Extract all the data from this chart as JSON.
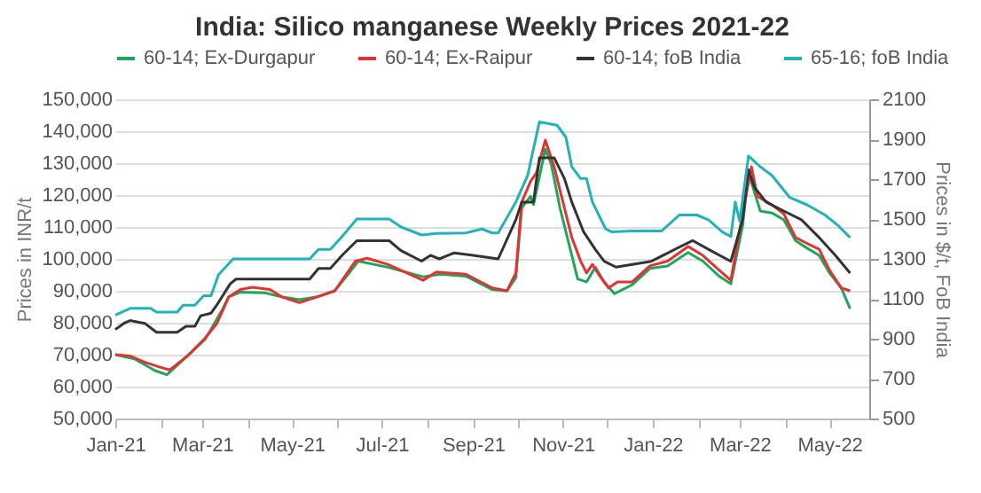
{
  "chart_data": {
    "type": "line",
    "title": "India: Silico manganese Weekly Prices 2021-22",
    "ylabel": "Prices in INR/t",
    "y2label": "Prices in $/t, FoB India",
    "xlim": [
      "2021-01-01",
      "2022-05-28"
    ],
    "xticks": [
      {
        "value": "2021-01",
        "label": "Jan-21"
      },
      {
        "value": "2021-02",
        "label": null
      },
      {
        "value": "2021-03",
        "label": "Mar-21"
      },
      {
        "value": "2021-04",
        "label": null
      },
      {
        "value": "2021-05",
        "label": "May-21"
      },
      {
        "value": "2021-06",
        "label": null
      },
      {
        "value": "2021-07",
        "label": "Jul-21"
      },
      {
        "value": "2021-08",
        "label": null
      },
      {
        "value": "2021-09",
        "label": "Sep-21"
      },
      {
        "value": "2021-10",
        "label": null
      },
      {
        "value": "2021-11",
        "label": "Nov-21"
      },
      {
        "value": "2021-12",
        "label": null
      },
      {
        "value": "2022-01",
        "label": "Jan-22"
      },
      {
        "value": "2022-02",
        "label": null
      },
      {
        "value": "2022-03",
        "label": "Mar-22"
      },
      {
        "value": "2022-04",
        "label": null
      },
      {
        "value": "2022-05",
        "label": "May-22"
      }
    ],
    "ylim": [
      50000,
      150000
    ],
    "yticks": [
      {
        "value": 50000,
        "label": "50,000"
      },
      {
        "value": 60000,
        "label": "60,000"
      },
      {
        "value": 70000,
        "label": "70,000"
      },
      {
        "value": 80000,
        "label": "80,000"
      },
      {
        "value": 90000,
        "label": "90,000"
      },
      {
        "value": 100000,
        "label": "100,000"
      },
      {
        "value": 110000,
        "label": "110,000"
      },
      {
        "value": 120000,
        "label": "120,000"
      },
      {
        "value": 130000,
        "label": "130,000"
      },
      {
        "value": 140000,
        "label": "140,000"
      },
      {
        "value": 150000,
        "label": "150,000"
      }
    ],
    "y2lim": [
      500,
      2100
    ],
    "y2ticks": [
      500,
      700,
      900,
      1100,
      1300,
      1500,
      1700,
      1900,
      2100
    ],
    "grid": "y",
    "legend": "top",
    "series": [
      {
        "name": "60-14; Ex-Durgapur",
        "color": "#1fa65a",
        "x": [
          "2021-01-01",
          "2021-01-14",
          "2021-01-28",
          "2021-02-05",
          "2021-02-19",
          "2021-03-03",
          "2021-03-15",
          "2021-03-19",
          "2021-03-27",
          "2021-04-12",
          "2021-04-24",
          "2021-05-06",
          "2021-05-18",
          "2021-05-30",
          "2021-06-07",
          "2021-06-15",
          "2021-07-05",
          "2021-07-29",
          "2021-08-10",
          "2021-08-27",
          "2021-09-14",
          "2021-09-24",
          "2021-09-30",
          "2021-10-04",
          "2021-10-10",
          "2021-10-12",
          "2021-10-20",
          "2021-10-24",
          "2021-10-30",
          "2021-11-05",
          "2021-11-11",
          "2021-11-17",
          "2021-11-23",
          "2021-11-29",
          "2021-12-06",
          "2021-12-18",
          "2021-12-30",
          "2022-01-11",
          "2022-01-25",
          "2022-02-04",
          "2022-02-15",
          "2022-02-23",
          "2022-03-03",
          "2022-03-07",
          "2022-03-15",
          "2022-03-23",
          "2022-03-31",
          "2022-04-08",
          "2022-04-16",
          "2022-04-24",
          "2022-05-01",
          "2022-05-09",
          "2022-05-15"
        ],
        "values": [
          70000,
          68700,
          65000,
          63700,
          69600,
          74800,
          84400,
          88100,
          89600,
          89400,
          88100,
          87200,
          88100,
          90000,
          94600,
          99300,
          97400,
          94400,
          95200,
          94600,
          90400,
          90000,
          94100,
          116000,
          119600,
          117000,
          134400,
          129800,
          115900,
          104800,
          93700,
          92800,
          97400,
          92800,
          89100,
          91900,
          97000,
          97800,
          102000,
          99300,
          94600,
          92200,
          110400,
          127000,
          115000,
          114400,
          112200,
          105700,
          103300,
          101100,
          95600,
          90900,
          84400
        ]
      },
      {
        "name": "60-14; Ex-Raipur",
        "color": "#e03333",
        "x": [
          "2021-01-01",
          "2021-01-11",
          "2021-01-20",
          "2021-01-30",
          "2021-02-07",
          "2021-02-19",
          "2021-03-03",
          "2021-03-11",
          "2021-03-19",
          "2021-03-27",
          "2021-04-04",
          "2021-04-16",
          "2021-04-24",
          "2021-05-06",
          "2021-05-18",
          "2021-05-30",
          "2021-06-13",
          "2021-06-21",
          "2021-07-05",
          "2021-07-29",
          "2021-08-07",
          "2021-08-27",
          "2021-09-14",
          "2021-09-24",
          "2021-09-30",
          "2021-10-04",
          "2021-10-10",
          "2021-10-14",
          "2021-10-20",
          "2021-10-26",
          "2021-11-01",
          "2021-11-07",
          "2021-11-13",
          "2021-11-17",
          "2021-11-21",
          "2021-11-26",
          "2021-12-02",
          "2021-12-08",
          "2021-12-18",
          "2021-12-30",
          "2022-01-11",
          "2022-01-25",
          "2022-02-04",
          "2022-02-15",
          "2022-02-23",
          "2022-03-03",
          "2022-03-09",
          "2022-03-13",
          "2022-03-23",
          "2022-03-31",
          "2022-04-08",
          "2022-04-16",
          "2022-04-24",
          "2022-05-01",
          "2022-05-09",
          "2022-05-15"
        ],
        "values": [
          70000,
          69600,
          67800,
          66300,
          65200,
          69600,
          75200,
          79800,
          88100,
          90400,
          91100,
          90400,
          88100,
          86300,
          88100,
          90000,
          99300,
          100200,
          98300,
          93300,
          95900,
          95200,
          90900,
          90000,
          95600,
          117800,
          124300,
          127000,
          137200,
          128900,
          117800,
          106700,
          99300,
          95600,
          98300,
          94600,
          90900,
          92800,
          92800,
          97800,
          99300,
          103900,
          101100,
          96500,
          93300,
          114100,
          128900,
          119600,
          116900,
          114100,
          106700,
          104800,
          103000,
          96500,
          90900,
          90000
        ]
      },
      {
        "name": "60-14; foB India",
        "color": "#333333",
        "axis": "y2",
        "x": [
          "2021-01-01",
          "2021-01-07",
          "2021-01-11",
          "2021-01-21",
          "2021-01-29",
          "2021-02-12",
          "2021-02-18",
          "2021-02-24",
          "2021-02-28",
          "2021-03-07",
          "2021-03-12",
          "2021-03-20",
          "2021-03-24",
          "2021-05-13",
          "2021-05-19",
          "2021-05-27",
          "2021-06-04",
          "2021-06-14",
          "2021-07-06",
          "2021-07-14",
          "2021-07-28",
          "2021-08-03",
          "2021-08-09",
          "2021-08-19",
          "2021-08-30",
          "2021-09-18",
          "2021-09-30",
          "2021-10-04",
          "2021-10-12",
          "2021-10-16",
          "2021-10-26",
          "2021-11-02",
          "2021-11-07",
          "2021-11-15",
          "2021-11-23",
          "2021-11-29",
          "2021-12-07",
          "2021-12-19",
          "2021-12-31",
          "2022-01-12",
          "2022-01-28",
          "2022-02-08",
          "2022-02-23",
          "2022-03-03",
          "2022-03-07",
          "2022-03-11",
          "2022-03-19",
          "2022-03-31",
          "2022-04-12",
          "2022-04-24",
          "2022-05-05",
          "2022-05-15"
        ],
        "values": [
          946,
          978,
          991,
          977,
          932,
          932,
          962,
          962,
          1015,
          1028,
          1081,
          1175,
          1199,
          1199,
          1252,
          1252,
          1318,
          1391,
          1391,
          1342,
          1289,
          1318,
          1300,
          1330,
          1320,
          1300,
          1496,
          1585,
          1585,
          1807,
          1807,
          1703,
          1585,
          1436,
          1347,
          1288,
          1259,
          1273,
          1288,
          1333,
          1392,
          1347,
          1288,
          1496,
          1747,
          1659,
          1585,
          1540,
          1496,
          1407,
          1318,
          1229
        ]
      },
      {
        "name": "65-16; foB India",
        "color": "#23b2b8",
        "axis": "y2",
        "x": [
          "2021-01-01",
          "2021-01-11",
          "2021-01-25",
          "2021-01-29",
          "2021-02-12",
          "2021-02-16",
          "2021-02-24",
          "2021-03-02",
          "2021-03-07",
          "2021-03-12",
          "2021-03-22",
          "2021-05-13",
          "2021-05-19",
          "2021-05-27",
          "2021-06-04",
          "2021-06-14",
          "2021-07-06",
          "2021-07-14",
          "2021-07-28",
          "2021-08-07",
          "2021-08-27",
          "2021-09-07",
          "2021-09-14",
          "2021-09-18",
          "2021-09-30",
          "2021-10-08",
          "2021-10-16",
          "2021-10-28",
          "2021-11-03",
          "2021-11-07",
          "2021-11-13",
          "2021-11-17",
          "2021-11-21",
          "2021-11-26",
          "2021-11-30",
          "2021-12-04",
          "2021-12-18",
          "2022-01-07",
          "2022-01-19",
          "2022-01-31",
          "2022-02-08",
          "2022-02-17",
          "2022-02-23",
          "2022-02-26",
          "2022-03-01",
          "2022-03-07",
          "2022-03-15",
          "2022-03-23",
          "2022-04-04",
          "2022-04-16",
          "2022-04-28",
          "2022-05-07",
          "2022-05-15"
        ],
        "values": [
          1018,
          1052,
          1052,
          1033,
          1033,
          1068,
          1068,
          1116,
          1116,
          1220,
          1300,
          1300,
          1348,
          1348,
          1412,
          1500,
          1500,
          1460,
          1420,
          1428,
          1430,
          1450,
          1430,
          1430,
          1585,
          1718,
          1987,
          1970,
          1910,
          1762,
          1703,
          1703,
          1585,
          1510,
          1450,
          1436,
          1440,
          1440,
          1520,
          1520,
          1495,
          1436,
          1412,
          1585,
          1490,
          1816,
          1762,
          1718,
          1608,
          1570,
          1520,
          1466,
          1407
        ]
      }
    ]
  }
}
